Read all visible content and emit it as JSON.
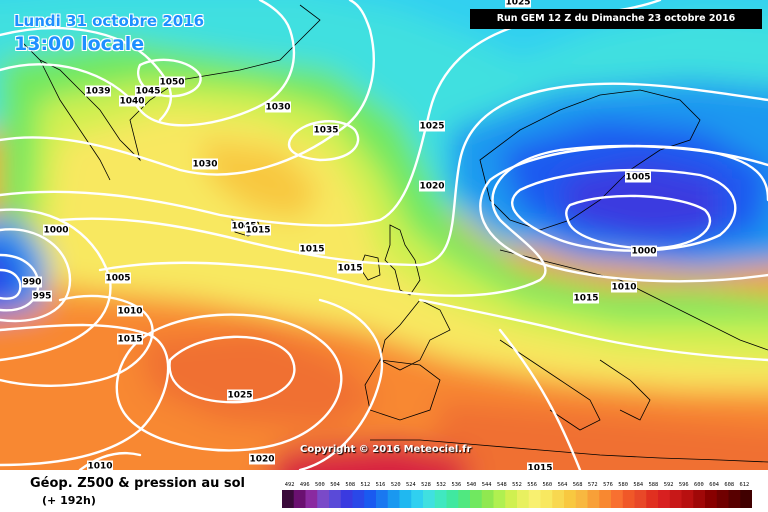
{
  "header": {
    "date": "Lundi 31 octobre 2016",
    "time": "13:00 locale",
    "run": "Run GEM 12 Z du Dimanche 23 octobre 2016"
  },
  "copyright": "Copyright © 2016 Meteociel.fr",
  "footer": {
    "title": "Géop. Z500 & pression au sol",
    "subtitle": "(+ 192h)"
  },
  "colors": {
    "geopotential_scale": [
      "#3a0a3a",
      "#6a1070",
      "#8a2aa0",
      "#7a4ac8",
      "#5a4ad8",
      "#3a3ae0",
      "#2a48e8",
      "#1a5af0",
      "#1a78f0",
      "#1a98f0",
      "#20b8f0",
      "#30d0f0",
      "#40e0e0",
      "#40e8c0",
      "#40e8a0",
      "#50e880",
      "#70e860",
      "#90e850",
      "#b0f050",
      "#d0f050",
      "#e8f060",
      "#f8f070",
      "#f8e860",
      "#f8d850",
      "#f8c840",
      "#f8b840",
      "#f8a038",
      "#f88830",
      "#f87030",
      "#f05828",
      "#e84828",
      "#e03020",
      "#d82020",
      "#c81818",
      "#b81010",
      "#a00808",
      "#880000",
      "#700000",
      "#580000",
      "#400000"
    ]
  },
  "scale": {
    "labels": [
      "492",
      "496",
      "500",
      "504",
      "508",
      "512",
      "516",
      "520",
      "524",
      "528",
      "532",
      "536",
      "540",
      "544",
      "548",
      "552",
      "556",
      "560",
      "564",
      "568",
      "572",
      "576",
      "580",
      "584",
      "588",
      "592",
      "596",
      "600",
      "604",
      "608",
      "612"
    ]
  },
  "pressure_labels": [
    {
      "text": "1025"
    },
    {
      "text": "1039"
    },
    {
      "text": "1045"
    },
    {
      "text": "1050"
    },
    {
      "text": "1040"
    },
    {
      "text": "1030"
    },
    {
      "text": "1035"
    },
    {
      "text": "1025"
    },
    {
      "text": "1030"
    },
    {
      "text": "1020"
    },
    {
      "text": "1005"
    },
    {
      "text": "1000"
    },
    {
      "text": "1045"
    },
    {
      "text": "1015"
    },
    {
      "text": "1015"
    },
    {
      "text": "1015"
    },
    {
      "text": "1000"
    },
    {
      "text": "1005"
    },
    {
      "text": "990"
    },
    {
      "text": "995"
    },
    {
      "text": "1010"
    },
    {
      "text": "1015"
    },
    {
      "text": "1010"
    },
    {
      "text": "1015"
    },
    {
      "text": "1025"
    },
    {
      "text": "1010"
    },
    {
      "text": "1020"
    },
    {
      "text": "1015"
    }
  ]
}
